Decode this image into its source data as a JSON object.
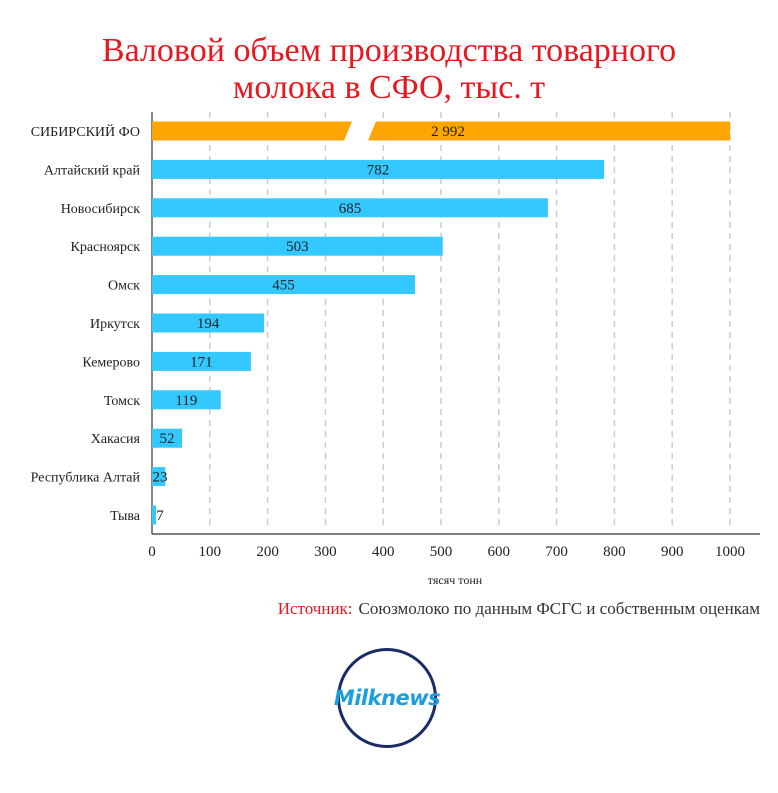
{
  "chart_data": {
    "type": "bar",
    "orientation": "horizontal",
    "title": [
      "Валовой объем производства товарного",
      "молока в СФО, тыс. т"
    ],
    "xlabel": "тясяч тонн",
    "ylabel": "",
    "xlim": [
      0,
      1000
    ],
    "xticks": [
      "0",
      "100",
      "200",
      "300",
      "400",
      "500",
      "600",
      "700",
      "800",
      "900",
      "1000"
    ],
    "grid": "vertical dashed",
    "categories": [
      "СИБИРСКИЙ ФО",
      "Алтайский край",
      "Новосибирск",
      "Красноярск",
      "Омск",
      "Иркутск",
      "Кемерово",
      "Томск",
      "Хакасия",
      "Республика Алтай",
      "Тыва"
    ],
    "values": [
      2992,
      782,
      685,
      503,
      455,
      194,
      171,
      119,
      52,
      23,
      7
    ],
    "value_labels": [
      "2 992",
      "782",
      "685",
      "503",
      "455",
      "194",
      "171",
      "119",
      "52",
      "23",
      "7"
    ],
    "axis_break": {
      "category": "СИБИРСКИЙ ФО",
      "note": "bar truncated at axis max"
    },
    "colors": {
      "highlight": "#ffa500",
      "bars": "#33c8ff",
      "grid": "#cccccc",
      "title": "#e8171e"
    }
  },
  "source": {
    "prefix": "Источник:",
    "text": "Союзмолоко по данным ФСГС и собственным оценкам"
  },
  "logo": {
    "text": "Milknews"
  }
}
